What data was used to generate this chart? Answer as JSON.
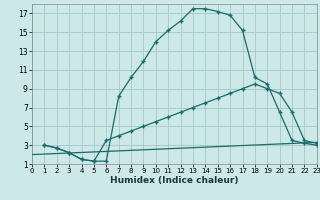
{
  "xlabel": "Humidex (Indice chaleur)",
  "bg_color": "#cce8e8",
  "grid_color": "#aacccc",
  "line_color": "#1a6b6b",
  "xlim": [
    0,
    23
  ],
  "ylim": [
    1,
    18
  ],
  "xticks": [
    0,
    1,
    2,
    3,
    4,
    5,
    6,
    7,
    8,
    9,
    10,
    11,
    12,
    13,
    14,
    15,
    16,
    17,
    18,
    19,
    20,
    21,
    22,
    23
  ],
  "yticks": [
    1,
    3,
    5,
    7,
    9,
    11,
    13,
    15,
    17
  ],
  "line1_x": [
    1,
    2,
    3,
    4,
    5,
    6,
    7,
    8,
    9,
    10,
    11,
    12,
    13,
    14,
    15,
    16,
    17,
    18,
    19,
    20,
    21,
    22,
    23
  ],
  "line1_y": [
    3,
    2.7,
    2.2,
    1.5,
    1.3,
    1.3,
    8.2,
    10.2,
    11.9,
    14.0,
    15.2,
    16.2,
    17.5,
    17.5,
    17.2,
    16.8,
    15.2,
    10.2,
    9.5,
    6.5,
    3.5,
    3.2,
    3.0
  ],
  "line2_x": [
    1,
    2,
    3,
    4,
    5,
    6,
    7,
    8,
    9,
    10,
    11,
    12,
    13,
    14,
    15,
    16,
    17,
    18,
    19,
    20,
    21,
    22,
    23
  ],
  "line2_y": [
    3,
    2.7,
    2.2,
    1.5,
    1.3,
    3.5,
    4.0,
    4.5,
    5.0,
    5.5,
    6.0,
    6.5,
    7.0,
    7.5,
    8.0,
    8.5,
    9.0,
    9.5,
    9.0,
    8.5,
    6.5,
    3.5,
    3.2
  ],
  "line3_x": [
    0,
    23
  ],
  "line3_y": [
    2.0,
    3.3
  ]
}
